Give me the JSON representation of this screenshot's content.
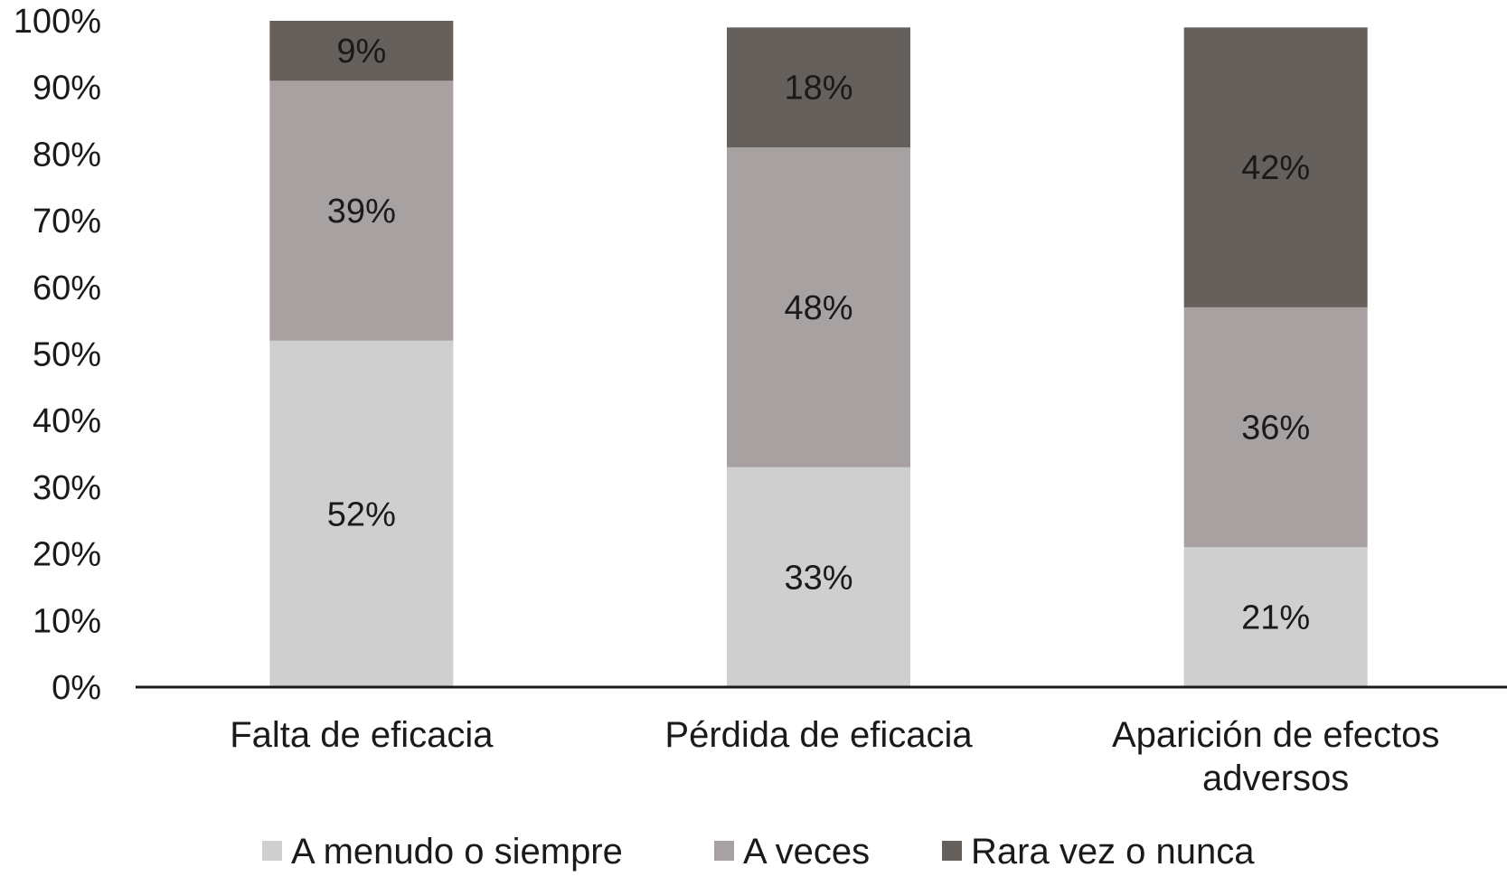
{
  "chart_data": {
    "type": "bar",
    "stacked": true,
    "categories": [
      [
        "Falta de eficacia"
      ],
      [
        "Pérdida de eficacia"
      ],
      [
        "Aparición de efectos",
        "adversos"
      ]
    ],
    "series": [
      {
        "name": "A menudo o siempre",
        "color": "#d0cfd0",
        "values": [
          52,
          33,
          21
        ],
        "labels": [
          "52%",
          "33%",
          "21%"
        ]
      },
      {
        "name": "A veces",
        "color": "#a7a2a1",
        "values": [
          39,
          48,
          36
        ],
        "labels": [
          "39%",
          "48%",
          "36%"
        ]
      },
      {
        "name": "Rara vez o nunca",
        "color": "#66605d",
        "values": [
          9,
          18,
          42
        ],
        "labels": [
          "9%",
          "18%",
          "42%"
        ]
      }
    ],
    "ylim": [
      0,
      100
    ],
    "yticks": [
      "0%",
      "10%",
      "20%",
      "30%",
      "40%",
      "50%",
      "60%",
      "70%",
      "80%",
      "90%",
      "100%"
    ],
    "grid": false,
    "legend_position": "bottom"
  }
}
